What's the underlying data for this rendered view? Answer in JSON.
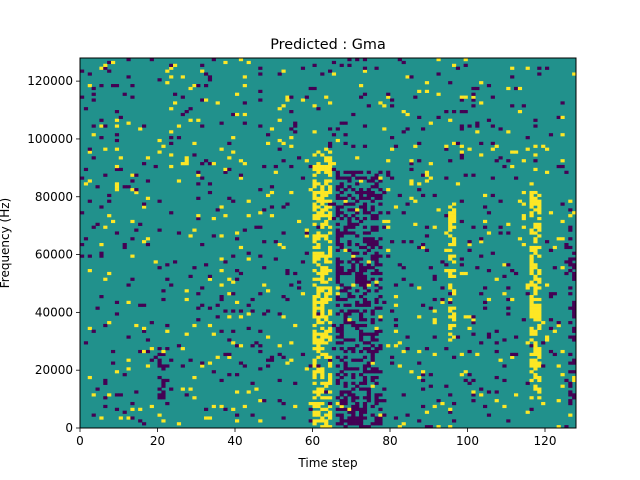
{
  "chart_data": {
    "type": "heatmap",
    "title": "Predicted : Gma",
    "xlabel": "Time step",
    "ylabel": "Frequency (Hz)",
    "xlim": [
      0,
      128
    ],
    "ylim": [
      0,
      128000
    ],
    "x_ticks": [
      0,
      20,
      40,
      60,
      80,
      100,
      120
    ],
    "y_ticks": [
      0,
      20000,
      40000,
      60000,
      80000,
      100000,
      120000
    ],
    "x_tick_labels": [
      "0",
      "20",
      "40",
      "60",
      "80",
      "100",
      "120"
    ],
    "y_tick_labels": [
      "0",
      "20000",
      "40000",
      "60000",
      "80000",
      "100000",
      "120000"
    ],
    "grid_shape": [
      128,
      128
    ],
    "cell_values": [
      -1,
      0,
      1
    ],
    "colors": {
      "low": "#440154",
      "mid": "#21918c",
      "high": "#fde725"
    },
    "background_value": 0,
    "high_value_bands": [
      {
        "time_range": [
          60,
          65
        ],
        "freq_range": [
          0,
          96000
        ],
        "note": "dense vertical band"
      },
      {
        "time_range": [
          95,
          97
        ],
        "freq_range": [
          30000,
          78000
        ]
      },
      {
        "time_range": [
          116,
          119
        ],
        "freq_range": [
          10000,
          82000
        ]
      }
    ],
    "low_value_bands": [
      {
        "time_range": [
          66,
          78
        ],
        "freq_range": [
          0,
          90000
        ]
      },
      {
        "time_range": [
          126,
          128
        ],
        "freq_range": [
          8000,
          70000
        ]
      },
      {
        "time_range": [
          20,
          22
        ],
        "freq_range": [
          10000,
          28000
        ]
      }
    ],
    "note": "Sparse remaining cells of value -1 or 1 scattered over the mid-valued background"
  }
}
